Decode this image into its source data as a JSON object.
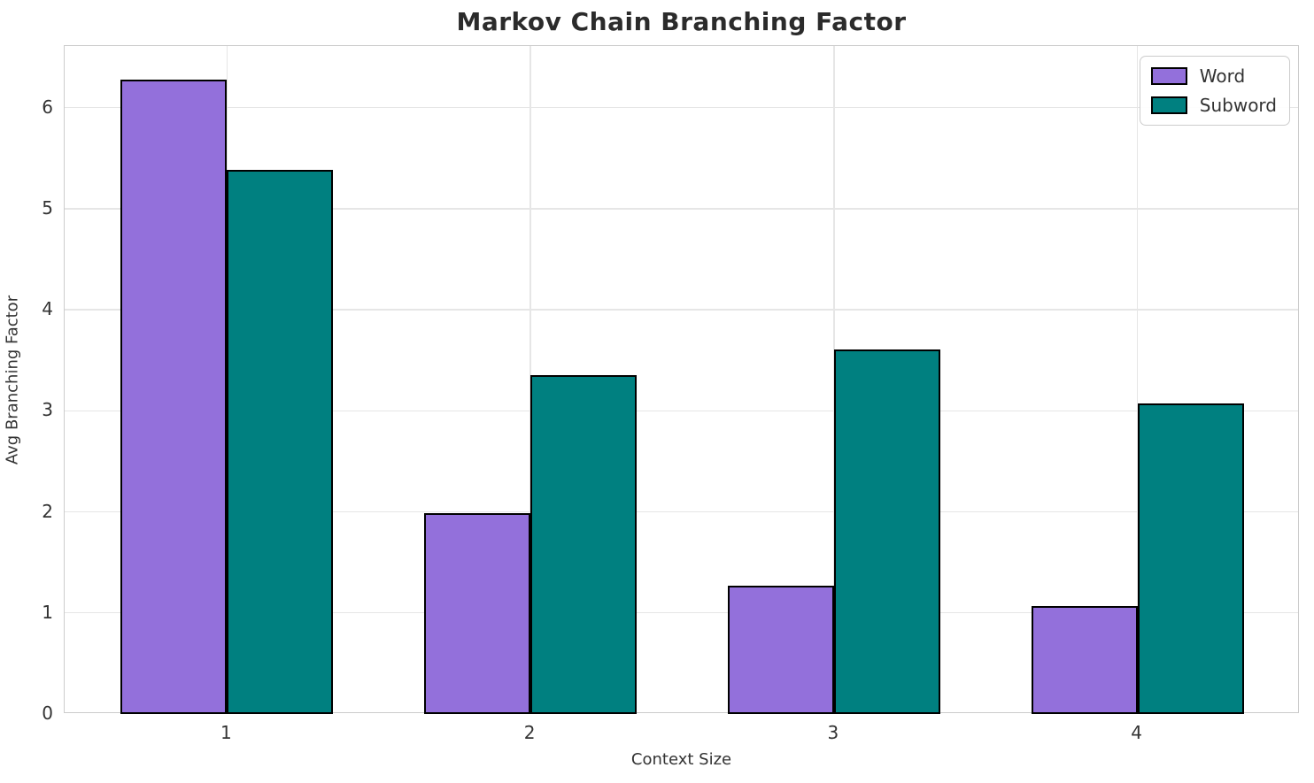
{
  "chart_data": {
    "type": "bar",
    "title": "Markov Chain Branching Factor",
    "xlabel": "Context Size",
    "ylabel": "Avg Branching Factor",
    "categories": [
      "1",
      "2",
      "3",
      "4"
    ],
    "series": [
      {
        "name": "Word",
        "color": "#9370DB",
        "values": [
          6.28,
          1.99,
          1.27,
          1.07
        ]
      },
      {
        "name": "Subword",
        "color": "#008080",
        "values": [
          5.38,
          3.35,
          3.61,
          3.07
        ]
      }
    ],
    "bar_width": 0.35,
    "edge_color": "#000000",
    "xlim": [
      0.465,
      4.535
    ],
    "ylim": [
      0,
      6.61
    ],
    "y_ticks": [
      "0",
      "1",
      "2",
      "3",
      "4",
      "5",
      "6"
    ],
    "grid": true,
    "legend_position": "upper right"
  }
}
